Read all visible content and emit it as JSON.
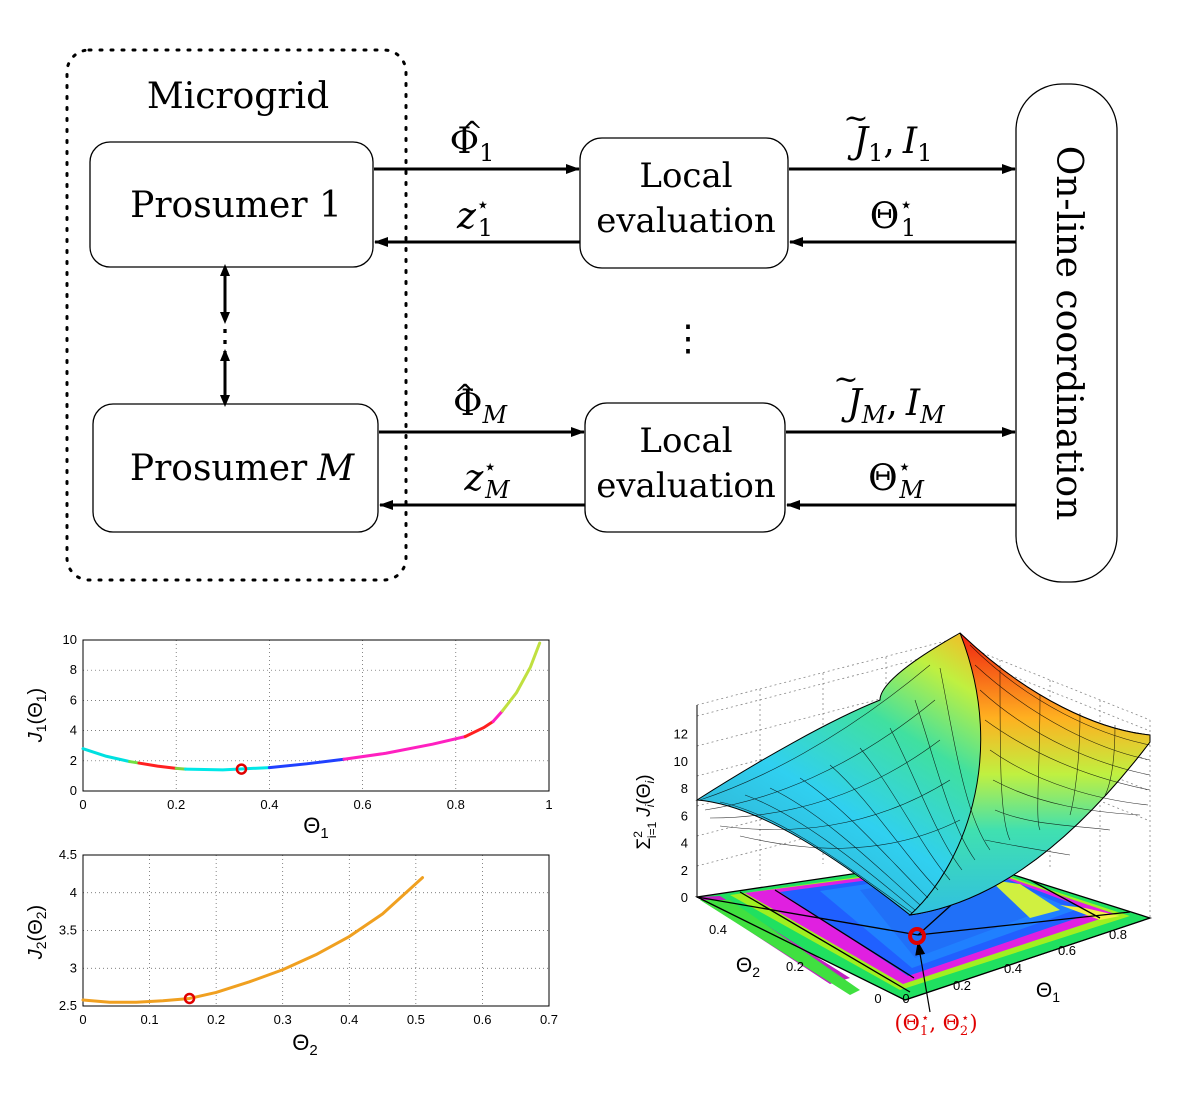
{
  "diagram": {
    "microgrid_label": "Microgrid",
    "prosumer_1_label": "Prosumer 1",
    "prosumer_m_label": "Prosumer",
    "prosumer_m_sym": "M",
    "local_eval_line1": "Local",
    "local_eval_line2": "evaluation",
    "coordinator_label": "On-line coordination",
    "phi_symbol": "Φ",
    "phi_hat": "^",
    "z_symbol": "z",
    "j_symbol": "J",
    "j_tilde": "~",
    "i_symbol": "I",
    "theta_symbol": "Θ",
    "star": "⋆",
    "comma": ",",
    "sub_1": "1",
    "sub_m": "M",
    "vdots": "⋮"
  },
  "chart_data": [
    {
      "type": "line",
      "xlabel_sym": "Θ",
      "xlabel_sub": "1",
      "ylabel": "J1(Θ1)",
      "ylabel_sym": "J",
      "ylabel_sub": "1",
      "ylabel_arg": "(Θ",
      "ylabel_arg_sub": "1",
      "ylabel_close": ")",
      "xlim": [
        0,
        1
      ],
      "ylim": [
        0,
        10
      ],
      "xticks": [
        "0",
        "0.2",
        "0.4",
        "0.6",
        "0.8",
        "1"
      ],
      "yticks": [
        "0",
        "2",
        "4",
        "6",
        "8",
        "10"
      ],
      "grid": true,
      "series": [
        {
          "color": "#00e0e0",
          "x": [
            0,
            0.05,
            0.1
          ],
          "y": [
            2.8,
            2.3,
            1.95
          ]
        },
        {
          "color": "#70e040",
          "x": [
            0.1,
            0.12
          ],
          "y": [
            1.95,
            1.85
          ]
        },
        {
          "color": "#ff2020",
          "x": [
            0.12,
            0.16,
            0.2
          ],
          "y": [
            1.85,
            1.65,
            1.5
          ]
        },
        {
          "color": "#80d040",
          "x": [
            0.2,
            0.22
          ],
          "y": [
            1.5,
            1.45
          ]
        },
        {
          "color": "#00e8e8",
          "x": [
            0.22,
            0.3,
            0.4
          ],
          "y": [
            1.45,
            1.4,
            1.55
          ]
        },
        {
          "color": "#2040ff",
          "x": [
            0.4,
            0.48,
            0.56
          ],
          "y": [
            1.55,
            1.8,
            2.1
          ]
        },
        {
          "color": "#ff20c0",
          "x": [
            0.56,
            0.65,
            0.75,
            0.82
          ],
          "y": [
            2.1,
            2.5,
            3.1,
            3.6
          ]
        },
        {
          "color": "#ff2020",
          "x": [
            0.82,
            0.86,
            0.88
          ],
          "y": [
            3.6,
            4.2,
            4.6
          ]
        },
        {
          "color": "#ff20c0",
          "x": [
            0.88,
            0.9
          ],
          "y": [
            4.6,
            5.3
          ]
        },
        {
          "color": "#c0e040",
          "x": [
            0.9,
            0.93,
            0.96,
            0.98
          ],
          "y": [
            5.3,
            6.5,
            8.2,
            9.8
          ]
        }
      ],
      "marker": {
        "x": 0.34,
        "y": 1.45,
        "color": "#e00000"
      }
    },
    {
      "type": "line",
      "xlabel_sym": "Θ",
      "xlabel_sub": "2",
      "ylabel": "J2(Θ2)",
      "ylabel_sym": "J",
      "ylabel_sub": "2",
      "ylabel_arg": "(Θ",
      "ylabel_arg_sub": "2",
      "ylabel_close": ")",
      "xlim": [
        0,
        0.7
      ],
      "ylim": [
        2.5,
        4.5
      ],
      "xticks": [
        "0",
        "0.1",
        "0.2",
        "0.3",
        "0.4",
        "0.5",
        "0.6",
        "0.7"
      ],
      "yticks": [
        "2.5",
        "3",
        "3.5",
        "4",
        "4.5"
      ],
      "grid": true,
      "series": [
        {
          "color": "#f0a020",
          "x": [
            0,
            0.04,
            0.08,
            0.12,
            0.16,
            0.2,
            0.25,
            0.3,
            0.35,
            0.4,
            0.45,
            0.5,
            0.51
          ],
          "y": [
            2.58,
            2.55,
            2.55,
            2.57,
            2.6,
            2.68,
            2.82,
            2.98,
            3.18,
            3.42,
            3.72,
            4.12,
            4.2
          ]
        }
      ],
      "marker": {
        "x": 0.16,
        "y": 2.6,
        "color": "#e00000"
      }
    },
    {
      "type": "surface",
      "zlabel_sum": "Σ",
      "zlabel_sup": "2",
      "zlabel_sub": "i=1",
      "zlabel_j": "J",
      "zlabel_jsub": "i",
      "zlabel_arg": "(Θ",
      "zlabel_arg_sub": "i",
      "zlabel_close": ")",
      "xlabel_sym": "Θ",
      "xlabel_sub": "1",
      "ylabel_sym": "Θ",
      "ylabel_sub": "2",
      "zticks": [
        "0",
        "2",
        "4",
        "6",
        "8",
        "10",
        "12"
      ],
      "x_ticks": [
        "0.2",
        "0.4",
        "0.6",
        "0.8"
      ],
      "y_ticks": [
        "0",
        "0.2",
        "0.4"
      ],
      "origin_x_tick": "0",
      "optimum_label": "(Θ1⋆, Θ2⋆)",
      "optimum_parts": [
        "(Θ",
        "1",
        "⋆",
        ", Θ",
        "2",
        "⋆",
        ")"
      ],
      "optimum_color": "#e00000"
    }
  ]
}
